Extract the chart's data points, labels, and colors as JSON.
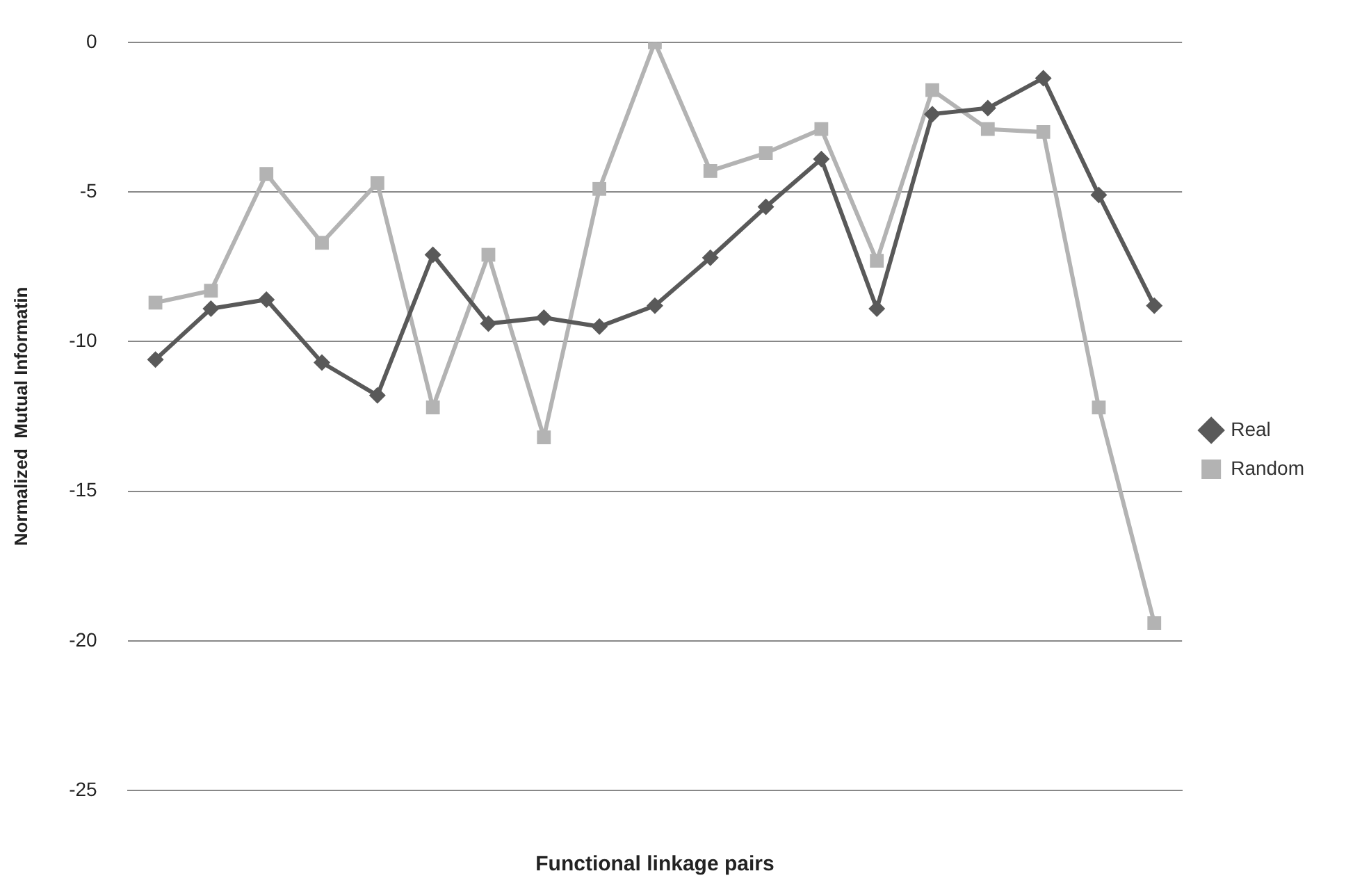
{
  "chart_data": {
    "type": "line",
    "xlabel": "Functional linkage pairs",
    "ylabel": "Normalized  Mutual Informatin",
    "categories": [
      null,
      null,
      null,
      null,
      null,
      null,
      null,
      null,
      null,
      null,
      null,
      null,
      null,
      null,
      null,
      null,
      null,
      null,
      null
    ],
    "series": [
      {
        "name": "Real",
        "color": "#595959",
        "marker": "diamond",
        "values": [
          -10.6,
          -8.9,
          -8.6,
          -10.7,
          -11.8,
          -7.1,
          -9.4,
          -9.2,
          -9.5,
          -8.8,
          -7.2,
          -5.5,
          -3.9,
          -8.9,
          -2.4,
          -2.2,
          -1.2,
          -5.1,
          -8.8
        ]
      },
      {
        "name": "Random",
        "color": "#b3b3b3",
        "marker": "square",
        "values": [
          -8.7,
          -8.3,
          -4.4,
          -6.7,
          -4.7,
          -12.2,
          -7.1,
          -13.2,
          -4.9,
          0,
          -4.3,
          -3.7,
          -2.9,
          -7.3,
          -1.6,
          -2.9,
          -3,
          -12.2,
          -19.4
        ]
      }
    ],
    "ylim": [
      -25,
      0
    ],
    "yticks": [
      -25,
      -20,
      -15,
      -10,
      -5,
      0
    ],
    "grid": "y",
    "legend": "right",
    "line_style": "solid"
  }
}
